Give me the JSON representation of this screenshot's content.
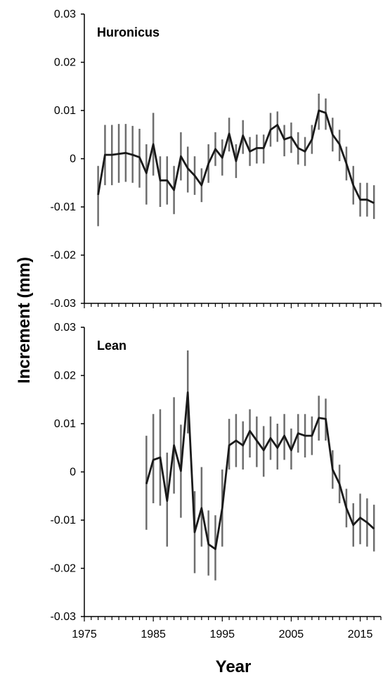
{
  "chart_data": [
    {
      "type": "line",
      "title": "Huronicus",
      "xlabel": "Year",
      "ylabel": "Increment (mm)",
      "xlim": [
        1975,
        2018
      ],
      "ylim": [
        -0.03,
        0.03
      ],
      "yticks": [
        "0.03",
        "0.02",
        "0.01",
        "0",
        "-0.01",
        "-0.02",
        "-0.03"
      ],
      "ytick_values": [
        0.03,
        0.02,
        0.01,
        0,
        -0.01,
        -0.02,
        -0.03
      ],
      "series": [
        {
          "x": [
            1977,
            1978,
            1979,
            1980,
            1981,
            1982,
            1983,
            1984,
            1985,
            1986,
            1987,
            1988,
            1989,
            1990,
            1991,
            1992,
            1993,
            1994,
            1995,
            1996,
            1997,
            1998,
            1999,
            2000,
            2001,
            2002,
            2003,
            2004,
            2005,
            2006,
            2007,
            2008,
            2009,
            2010,
            2011,
            2012,
            2013,
            2014,
            2015,
            2016,
            2017
          ],
          "y": [
            -0.0075,
            0.0008,
            0.0008,
            0.001,
            0.0012,
            0.0008,
            0.0003,
            -0.003,
            0.003,
            -0.0045,
            -0.0045,
            -0.0065,
            0.0005,
            -0.002,
            -0.0035,
            -0.0055,
            -0.001,
            0.002,
            0.0002,
            0.0052,
            -0.0005,
            0.0048,
            0.0015,
            0.0022,
            0.0022,
            0.006,
            0.007,
            0.004,
            0.0045,
            0.0022,
            0.0015,
            0.004,
            0.01,
            0.0095,
            0.005,
            0.003,
            -0.001,
            -0.0055,
            -0.0085,
            -0.0085,
            -0.0092
          ],
          "err_low": [
            -0.014,
            -0.0055,
            -0.0055,
            -0.005,
            -0.0048,
            -0.005,
            -0.006,
            -0.0095,
            -0.0035,
            -0.01,
            -0.0095,
            -0.0115,
            -0.0045,
            -0.007,
            -0.0075,
            -0.009,
            -0.005,
            -0.0015,
            -0.0035,
            0.0015,
            -0.004,
            0.001,
            -0.0015,
            -0.001,
            -0.001,
            0.0025,
            0.0035,
            0.0005,
            0.0012,
            -0.0012,
            -0.0015,
            0.001,
            0.006,
            0.006,
            0.0015,
            -0.0005,
            -0.0045,
            -0.0095,
            -0.012,
            -0.012,
            -0.0125
          ],
          "err_high": [
            -0.0015,
            0.007,
            0.007,
            0.0072,
            0.0072,
            0.0068,
            0.0062,
            0.003,
            0.0095,
            0.0005,
            0.0005,
            -0.0015,
            0.0055,
            0.0025,
            0.0005,
            -0.002,
            0.003,
            0.0055,
            0.004,
            0.0085,
            0.003,
            0.008,
            0.0045,
            0.005,
            0.005,
            0.0095,
            0.0098,
            0.007,
            0.0075,
            0.0055,
            0.0045,
            0.007,
            0.0135,
            0.0125,
            0.0085,
            0.006,
            0.0025,
            -0.0015,
            -0.005,
            -0.005,
            -0.0055
          ]
        }
      ]
    },
    {
      "type": "line",
      "title": "Lean",
      "xlabel": "Year",
      "ylabel": "Increment (mm)",
      "xlim": [
        1975,
        2018
      ],
      "ylim": [
        -0.03,
        0.03
      ],
      "xticks": [
        "1975",
        "1985",
        "1995",
        "2005",
        "2015"
      ],
      "xtick_values": [
        1975,
        1985,
        1995,
        2005,
        2015
      ],
      "yticks": [
        "0.03",
        "0.02",
        "0.01",
        "0",
        "-0.01",
        "-0.02",
        "-0.03"
      ],
      "ytick_values": [
        0.03,
        0.02,
        0.01,
        0,
        -0.01,
        -0.02,
        -0.03
      ],
      "series": [
        {
          "x": [
            1984,
            1985,
            1986,
            1987,
            1988,
            1989,
            1990,
            1991,
            1992,
            1993,
            1994,
            1995,
            1996,
            1997,
            1998,
            1999,
            2000,
            2001,
            2002,
            2003,
            2004,
            2005,
            2006,
            2007,
            2008,
            2009,
            2010,
            2011,
            2012,
            2013,
            2014,
            2015,
            2016,
            2017
          ],
          "y": [
            -0.0025,
            0.0025,
            0.003,
            -0.006,
            0.0055,
            0.0002,
            0.0165,
            -0.0125,
            -0.0075,
            -0.015,
            -0.016,
            -0.0075,
            0.0055,
            0.0065,
            0.0055,
            0.0085,
            0.0065,
            0.0045,
            0.007,
            0.005,
            0.0075,
            0.0045,
            0.008,
            0.0075,
            0.0075,
            0.0112,
            0.011,
            0.0005,
            -0.0025,
            -0.0075,
            -0.011,
            -0.0095,
            -0.0105,
            -0.0118
          ],
          "err_low": [
            -0.012,
            -0.0065,
            -0.007,
            -0.0155,
            -0.0045,
            -0.0095,
            0.008,
            -0.021,
            -0.0155,
            -0.0215,
            -0.0225,
            -0.0155,
            0.0005,
            0.001,
            0.0005,
            0.003,
            0.001,
            -0.001,
            0.0025,
            0.0005,
            0.0025,
            0.0005,
            0.004,
            0.003,
            0.0035,
            0.0065,
            0.0065,
            -0.0035,
            -0.0065,
            -0.0115,
            -0.0155,
            -0.015,
            -0.0155,
            -0.0165
          ],
          "err_high": [
            0.0075,
            0.012,
            0.013,
            0.004,
            0.0155,
            0.0098,
            0.0252,
            -0.004,
            0.001,
            -0.008,
            -0.009,
            0.0005,
            0.011,
            0.012,
            0.0105,
            0.013,
            0.0115,
            0.0095,
            0.0115,
            0.01,
            0.012,
            0.009,
            0.012,
            0.012,
            0.0115,
            0.0158,
            0.0152,
            0.0045,
            0.0015,
            -0.0035,
            -0.0065,
            -0.0045,
            -0.0055,
            -0.0068
          ]
        }
      ]
    }
  ]
}
